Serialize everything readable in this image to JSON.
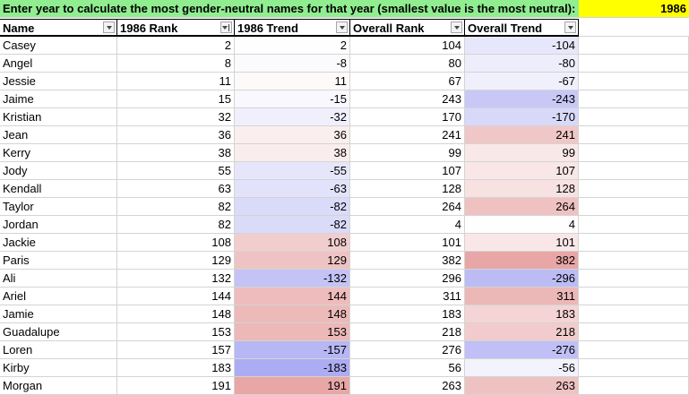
{
  "banner": {
    "prompt": "Enter year to calculate the most gender-neutral names for that year (smallest value is the most neutral):",
    "year": "1986"
  },
  "headers": [
    "Name",
    "1986 Rank",
    "1986 Trend",
    "Overall Rank",
    "Overall Trend"
  ],
  "colors": {
    "positive": "#e8a6a6",
    "negative": "#a8a8f2",
    "banner": "#90ee90",
    "year": "#ffff00"
  },
  "rows": [
    {
      "name": "Casey",
      "rank": "2",
      "trend": "2",
      "overall_rank": "104",
      "overall_trend": "-104"
    },
    {
      "name": "Angel",
      "rank": "8",
      "trend": "-8",
      "overall_rank": "80",
      "overall_trend": "-80"
    },
    {
      "name": "Jessie",
      "rank": "11",
      "trend": "11",
      "overall_rank": "67",
      "overall_trend": "-67"
    },
    {
      "name": "Jaime",
      "rank": "15",
      "trend": "-15",
      "overall_rank": "243",
      "overall_trend": "-243"
    },
    {
      "name": "Kristian",
      "rank": "32",
      "trend": "-32",
      "overall_rank": "170",
      "overall_trend": "-170"
    },
    {
      "name": "Jean",
      "rank": "36",
      "trend": "36",
      "overall_rank": "241",
      "overall_trend": "241"
    },
    {
      "name": "Kerry",
      "rank": "38",
      "trend": "38",
      "overall_rank": "99",
      "overall_trend": "99"
    },
    {
      "name": "Jody",
      "rank": "55",
      "trend": "-55",
      "overall_rank": "107",
      "overall_trend": "107"
    },
    {
      "name": "Kendall",
      "rank": "63",
      "trend": "-63",
      "overall_rank": "128",
      "overall_trend": "128"
    },
    {
      "name": "Taylor",
      "rank": "82",
      "trend": "-82",
      "overall_rank": "264",
      "overall_trend": "264"
    },
    {
      "name": "Jordan",
      "rank": "82",
      "trend": "-82",
      "overall_rank": "4",
      "overall_trend": "4"
    },
    {
      "name": "Jackie",
      "rank": "108",
      "trend": "108",
      "overall_rank": "101",
      "overall_trend": "101"
    },
    {
      "name": "Paris",
      "rank": "129",
      "trend": "129",
      "overall_rank": "382",
      "overall_trend": "382"
    },
    {
      "name": "Ali",
      "rank": "132",
      "trend": "-132",
      "overall_rank": "296",
      "overall_trend": "-296"
    },
    {
      "name": "Ariel",
      "rank": "144",
      "trend": "144",
      "overall_rank": "311",
      "overall_trend": "311"
    },
    {
      "name": "Jamie",
      "rank": "148",
      "trend": "148",
      "overall_rank": "183",
      "overall_trend": "183"
    },
    {
      "name": "Guadalupe",
      "rank": "153",
      "trend": "153",
      "overall_rank": "218",
      "overall_trend": "218"
    },
    {
      "name": "Loren",
      "rank": "157",
      "trend": "-157",
      "overall_rank": "276",
      "overall_trend": "-276"
    },
    {
      "name": "Kirby",
      "rank": "183",
      "trend": "-183",
      "overall_rank": "56",
      "overall_trend": "-56"
    },
    {
      "name": "Morgan",
      "rank": "191",
      "trend": "191",
      "overall_rank": "263",
      "overall_trend": "263"
    }
  ]
}
